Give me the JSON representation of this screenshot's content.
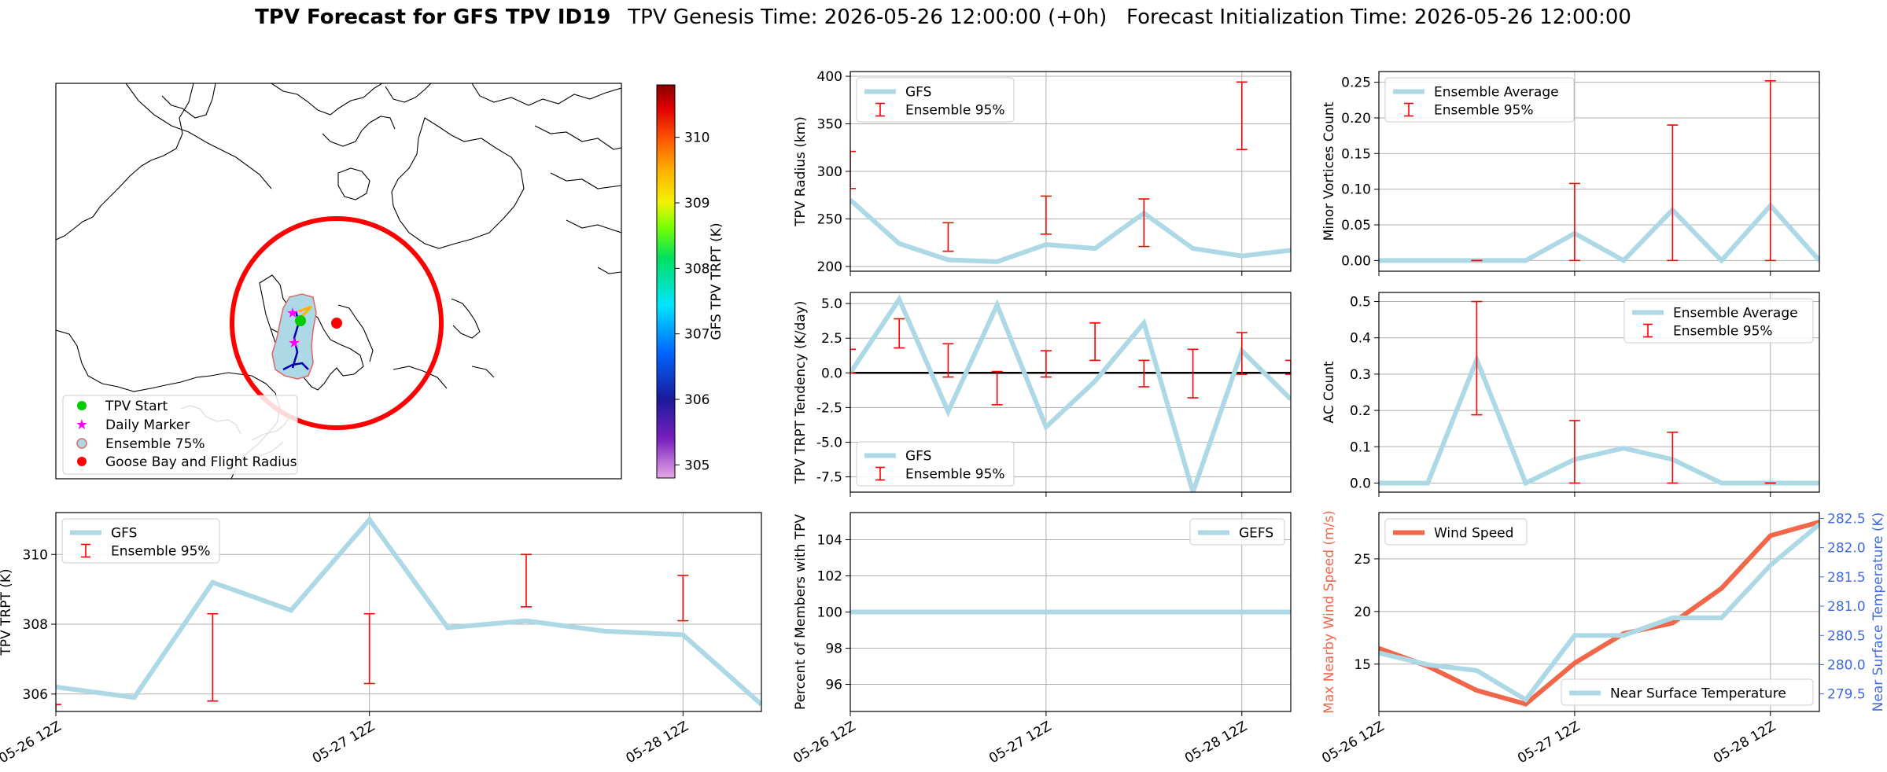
{
  "header": {
    "title_bold": "TPV Forecast for GFS TPV ID19",
    "title_rest": "TPV Genesis Time: 2026-05-26 12:00:00 (+0h)   Forecast Initialization Time: 2026-05-26 12:00:00"
  },
  "colors": {
    "model_line": "#add8e6",
    "error_bar": "#ff0000",
    "wind_line": "#f26749",
    "temp_axis": "#4169e1",
    "zero_line": "#000000",
    "grid": "#b0b0b0"
  },
  "map_panel": {
    "colorbar": {
      "label": "GFS TPV TRPT (K)",
      "ticks": [
        305,
        306,
        307,
        308,
        309,
        310
      ],
      "range": [
        304.8,
        310.8
      ],
      "colormap": "gist_ncar-like (violet-blue-cyan-green-yellow-orange-red-darkred)"
    },
    "legend": [
      {
        "label": "TPV Start",
        "marker": "green-circle"
      },
      {
        "label": "Daily Marker",
        "marker": "magenta-star"
      },
      {
        "label": "Ensemble 75%",
        "marker": "lightblue-circle-red-edge"
      },
      {
        "label": "Goose Bay and Flight Radius",
        "marker": "red-circle"
      }
    ]
  },
  "time_axis": {
    "tick_labels": [
      "05-26 12Z",
      "05-27 12Z",
      "05-28 12Z"
    ],
    "tick_positions": [
      0,
      24,
      48
    ]
  },
  "chart_data": [
    {
      "id": "radius",
      "type": "line",
      "ylabel": "TPV Radius (km)",
      "xlim": [
        0,
        54
      ],
      "ylim": [
        195,
        405
      ],
      "yticks": [
        200,
        250,
        300,
        350,
        400
      ],
      "legend_loc": "upper-left",
      "legend": [
        "GFS",
        "Ensemble 95%"
      ],
      "series": [
        {
          "name": "GFS",
          "x": [
            0,
            6,
            12,
            18,
            24,
            30,
            36,
            42,
            48,
            54
          ],
          "y": [
            270,
            224,
            207,
            205,
            223,
            219,
            256,
            219,
            211,
            217
          ]
        }
      ],
      "error_bars": [
        {
          "x": 0,
          "low": 282,
          "high": 321
        },
        {
          "x": 12,
          "low": 216,
          "high": 246
        },
        {
          "x": 24,
          "low": 234,
          "high": 274
        },
        {
          "x": 36,
          "low": 221,
          "high": 271
        },
        {
          "x": 48,
          "low": 323,
          "high": 394
        }
      ]
    },
    {
      "id": "tendency",
      "type": "line",
      "ylabel": "TPV TRPT Tendency (K/day)",
      "xlim": [
        0,
        54
      ],
      "ylim": [
        -8.6,
        5.8
      ],
      "yticks": [
        -7.5,
        -5.0,
        -2.5,
        0.0,
        2.5,
        5.0
      ],
      "zero_line": true,
      "legend_loc": "lower-left",
      "legend": [
        "GFS",
        "Ensemble 95%"
      ],
      "series": [
        {
          "name": "GFS",
          "x": [
            0,
            6,
            12,
            18,
            24,
            30,
            36,
            42,
            48,
            54
          ],
          "y": [
            0.0,
            5.3,
            -2.8,
            4.9,
            -3.9,
            -0.6,
            3.6,
            -8.6,
            1.6,
            -1.9
          ]
        }
      ],
      "error_bars": [
        {
          "x": 0,
          "low": 0.0,
          "high": 1.7
        },
        {
          "x": 6,
          "low": 1.8,
          "high": 3.9
        },
        {
          "x": 12,
          "low": -0.3,
          "high": 2.1
        },
        {
          "x": 18,
          "low": -2.3,
          "high": 0.1
        },
        {
          "x": 24,
          "low": -0.3,
          "high": 1.6
        },
        {
          "x": 30,
          "low": 0.9,
          "high": 3.6
        },
        {
          "x": 36,
          "low": -1.0,
          "high": 0.9
        },
        {
          "x": 42,
          "low": -1.8,
          "high": 1.7
        },
        {
          "x": 48,
          "low": -0.1,
          "high": 2.9
        },
        {
          "x": 54,
          "low": -0.1,
          "high": 0.9
        }
      ]
    },
    {
      "id": "trpt",
      "type": "line",
      "ylabel": "TPV TRPT (K)",
      "xlim": [
        0,
        54
      ],
      "ylim": [
        305.5,
        311.2
      ],
      "yticks": [
        306,
        308,
        310
      ],
      "legend_loc": "upper-left",
      "legend": [
        "GFS",
        "Ensemble 95%"
      ],
      "series": [
        {
          "name": "GFS",
          "x": [
            0,
            6,
            12,
            18,
            24,
            30,
            36,
            42,
            48,
            54
          ],
          "y": [
            306.2,
            305.9,
            309.2,
            308.4,
            311.0,
            307.9,
            308.1,
            307.8,
            307.7,
            305.7
          ]
        }
      ],
      "error_bars": [
        {
          "x": 0,
          "low": 305.0,
          "high": 305.7
        },
        {
          "x": 12,
          "low": 305.8,
          "high": 308.3
        },
        {
          "x": 24,
          "low": 306.3,
          "high": 308.3
        },
        {
          "x": 36,
          "low": 308.5,
          "high": 310.0
        },
        {
          "x": 48,
          "low": 308.1,
          "high": 309.4
        }
      ]
    },
    {
      "id": "percent",
      "type": "line",
      "ylabel": "Percent of Members with TPV",
      "xlim": [
        0,
        54
      ],
      "ylim": [
        94.5,
        105.5
      ],
      "yticks": [
        96,
        98,
        100,
        102,
        104
      ],
      "legend_loc": "upper-right",
      "legend": [
        "GEFS"
      ],
      "series": [
        {
          "name": "GEFS",
          "x": [
            0,
            6,
            12,
            18,
            24,
            30,
            36,
            42,
            48,
            54
          ],
          "y": [
            100,
            100,
            100,
            100,
            100,
            100,
            100,
            100,
            100,
            100
          ]
        }
      ]
    },
    {
      "id": "minor",
      "type": "line",
      "ylabel": "Minor Vortices Count",
      "xlim": [
        0,
        54
      ],
      "ylim": [
        -0.015,
        0.265
      ],
      "yticks": [
        0.0,
        0.05,
        0.1,
        0.15,
        0.2,
        0.25
      ],
      "ytick_labels": [
        "0.00",
        "0.05",
        "0.10",
        "0.15",
        "0.20",
        "0.25"
      ],
      "legend_loc": "upper-left",
      "legend": [
        "Ensemble Average",
        "Ensemble 95%"
      ],
      "series": [
        {
          "name": "Ensemble Average",
          "x": [
            0,
            6,
            12,
            18,
            24,
            30,
            36,
            42,
            48,
            54
          ],
          "y": [
            0.0,
            0.0,
            0.0,
            0.0,
            0.038,
            0.0,
            0.071,
            0.0,
            0.077,
            0.0
          ]
        }
      ],
      "error_bars": [
        {
          "x": 12,
          "low": 0.0,
          "high": 0.0
        },
        {
          "x": 24,
          "low": 0.0,
          "high": 0.108
        },
        {
          "x": 36,
          "low": 0.0,
          "high": 0.19
        },
        {
          "x": 48,
          "low": 0.0,
          "high": 0.252
        }
      ]
    },
    {
      "id": "ac",
      "type": "line",
      "ylabel": "AC Count",
      "xlim": [
        0,
        54
      ],
      "ylim": [
        -0.025,
        0.525
      ],
      "yticks": [
        0.0,
        0.1,
        0.2,
        0.3,
        0.4,
        0.5
      ],
      "ytick_labels": [
        "0.0",
        "0.1",
        "0.2",
        "0.3",
        "0.4",
        "0.5"
      ],
      "legend_loc": "upper-right",
      "legend": [
        "Ensemble Average",
        "Ensemble 95%"
      ],
      "series": [
        {
          "name": "Ensemble Average",
          "x": [
            0,
            6,
            12,
            18,
            24,
            30,
            36,
            42,
            48,
            54
          ],
          "y": [
            0.0,
            0.0,
            0.34,
            0.0,
            0.065,
            0.096,
            0.065,
            0.0,
            0.0,
            0.0
          ]
        }
      ],
      "error_bars": [
        {
          "x": 12,
          "low": 0.188,
          "high": 0.5
        },
        {
          "x": 24,
          "low": 0.0,
          "high": 0.172
        },
        {
          "x": 36,
          "low": 0.0,
          "high": 0.14
        },
        {
          "x": 48,
          "low": 0.0,
          "high": 0.0
        }
      ]
    },
    {
      "id": "wind",
      "type": "line",
      "ylabel": "Max Nearby Wind Speed (m/s)",
      "ylabel2": "Near Surface Temperature (K)",
      "xlim": [
        0,
        54
      ],
      "ylim": [
        10.5,
        29.4
      ],
      "yticks": [
        15,
        20,
        25
      ],
      "ylim2": [
        279.2,
        282.6
      ],
      "yticks2": [
        279.5,
        280.0,
        280.5,
        281.0,
        281.5,
        282.0,
        282.5
      ],
      "legend": [
        "Wind Speed",
        "Near Surface Temperature"
      ],
      "series": [
        {
          "name": "Wind Speed",
          "axis": "left",
          "x": [
            0,
            6,
            12,
            18,
            24,
            30,
            36,
            42,
            48,
            54
          ],
          "y": [
            16.5,
            14.8,
            12.5,
            11.2,
            15.1,
            17.9,
            18.9,
            22.2,
            27.2,
            28.5
          ]
        },
        {
          "name": "Near Surface Temperature",
          "axis": "right",
          "x": [
            0,
            6,
            12,
            18,
            24,
            30,
            36,
            42,
            48,
            54
          ],
          "y": [
            280.2,
            280.0,
            279.9,
            279.4,
            280.5,
            280.5,
            280.8,
            280.8,
            281.7,
            282.4
          ]
        }
      ]
    }
  ]
}
